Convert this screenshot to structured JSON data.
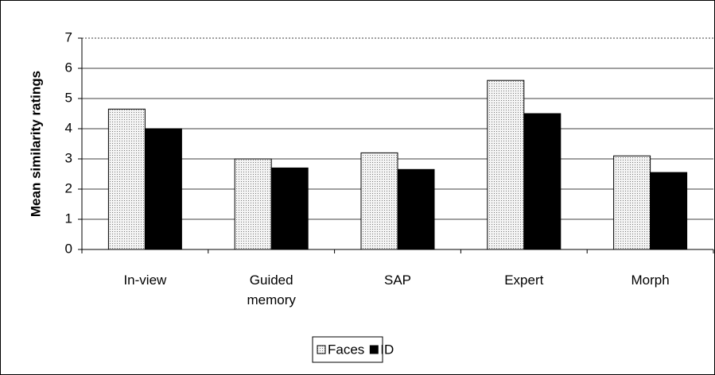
{
  "chart_data": {
    "type": "bar",
    "y_label": "Mean similarity ratings",
    "categories": [
      "In-view",
      "Guided memory",
      "SAP",
      "Expert",
      "Morph"
    ],
    "series": [
      {
        "name": "Faces",
        "color": "#e8e8e8",
        "values": [
          4.65,
          3.0,
          3.2,
          5.6,
          3.1
        ]
      },
      {
        "name": "ID",
        "color": "#000000",
        "values": [
          4.0,
          2.7,
          2.65,
          4.5,
          2.55
        ]
      }
    ],
    "ylim": [
      0,
      7
    ],
    "yticks": [
      0,
      1,
      2,
      3,
      4,
      5,
      6,
      7
    ],
    "grid": true,
    "legend": "bottom"
  }
}
